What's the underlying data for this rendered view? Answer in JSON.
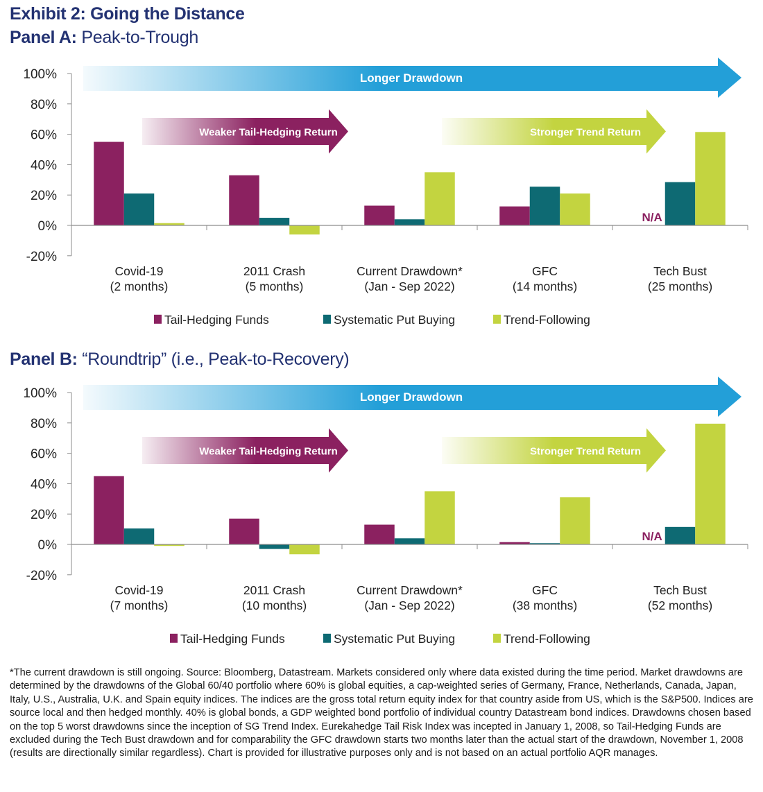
{
  "title": "Exhibit 2: Going the Distance",
  "colors": {
    "tail_hedging": "#8B2160",
    "put_buying": "#0E6A73",
    "trend": "#C3D440",
    "longer_arrow": "#239FD8",
    "title_text": "#233272",
    "axis": "#8c8c8c"
  },
  "annotations": {
    "longer": "Longer Drawdown",
    "weaker": "Weaker Tail-Hedging Return",
    "stronger": "Stronger Trend Return",
    "na": "N/A"
  },
  "chart_data": [
    {
      "type": "bar",
      "panel_label": "Panel A:",
      "title": "Peak-to-Trough",
      "xlabel": "",
      "ylabel": "",
      "ylim": [
        -20,
        100
      ],
      "yticks": [
        "100%",
        "80%",
        "60%",
        "40%",
        "20%",
        "0%",
        "-20%"
      ],
      "ytick_values": [
        100,
        80,
        60,
        40,
        20,
        0,
        -20
      ],
      "grid": false,
      "legend": "bottom",
      "categories": [
        [
          "Covid-19",
          "(2 months)"
        ],
        [
          "2011 Crash",
          "(5 months)"
        ],
        [
          "Current Drawdown*",
          "(Jan - Sep 2022)"
        ],
        [
          "GFC",
          "(14 months)"
        ],
        [
          "Tech Bust",
          "(25 months)"
        ]
      ],
      "series": [
        {
          "name": "Tail-Hedging Funds",
          "values": [
            55,
            33,
            13,
            12.5,
            null
          ]
        },
        {
          "name": "Systematic Put Buying",
          "values": [
            21,
            5,
            4,
            25.5,
            28.5
          ]
        },
        {
          "name": "Trend-Following",
          "values": [
            1.5,
            -6,
            35,
            21,
            61.5
          ]
        }
      ],
      "na_label": "N/A"
    },
    {
      "type": "bar",
      "panel_label": "Panel B:",
      "title": "“Roundtrip” (i.e., Peak-to-Recovery)",
      "xlabel": "",
      "ylabel": "",
      "ylim": [
        -20,
        100
      ],
      "yticks": [
        "100%",
        "80%",
        "60%",
        "40%",
        "20%",
        "0%",
        "-20%"
      ],
      "ytick_values": [
        100,
        80,
        60,
        40,
        20,
        0,
        -20
      ],
      "grid": false,
      "legend": "bottom",
      "categories": [
        [
          "Covid-19",
          "(7 months)"
        ],
        [
          "2011 Crash",
          "(10 months)"
        ],
        [
          "Current Drawdown*",
          "(Jan - Sep 2022)"
        ],
        [
          "GFC",
          "(38 months)"
        ],
        [
          "Tech Bust",
          "(52 months)"
        ]
      ],
      "series": [
        {
          "name": "Tail-Hedging Funds",
          "values": [
            45,
            17,
            13,
            1.5,
            null
          ]
        },
        {
          "name": "Systematic Put Buying",
          "values": [
            10.5,
            -3,
            4,
            0.8,
            11.5
          ]
        },
        {
          "name": "Trend-Following",
          "values": [
            -1,
            -6.5,
            35,
            31,
            79.5
          ]
        }
      ],
      "na_label": "N/A"
    }
  ],
  "footnote": "*The current drawdown is still ongoing. Source: Bloomberg, Datastream. Markets considered only where data existed during the time period. Market drawdowns are determined by the drawdowns of the Global 60/40 portfolio where 60% is global equities, a cap-weighted series of Germany, France, Netherlands, Canada, Japan, Italy, U.S., Australia, U.K. and Spain equity indices. The indices are the gross total return equity index for that country aside from US, which is the S&P500. Indices are source local and then hedged monthly. 40% is global bonds, a GDP weighted bond portfolio of individual country Datastream bond indices. Drawdowns chosen based on the top 5 worst drawdowns since the inception of SG Trend Index. Eurekahedge Tail Risk Index was incepted in January 1, 2008, so Tail-Hedging Funds are excluded during the Tech Bust drawdown and for comparability the GFC drawdown starts two months later than the actual start of the drawdown, November 1, 2008 (results are directionally similar regardless). Chart is provided for illustrative purposes only and is not based on an actual portfolio AQR manages."
}
